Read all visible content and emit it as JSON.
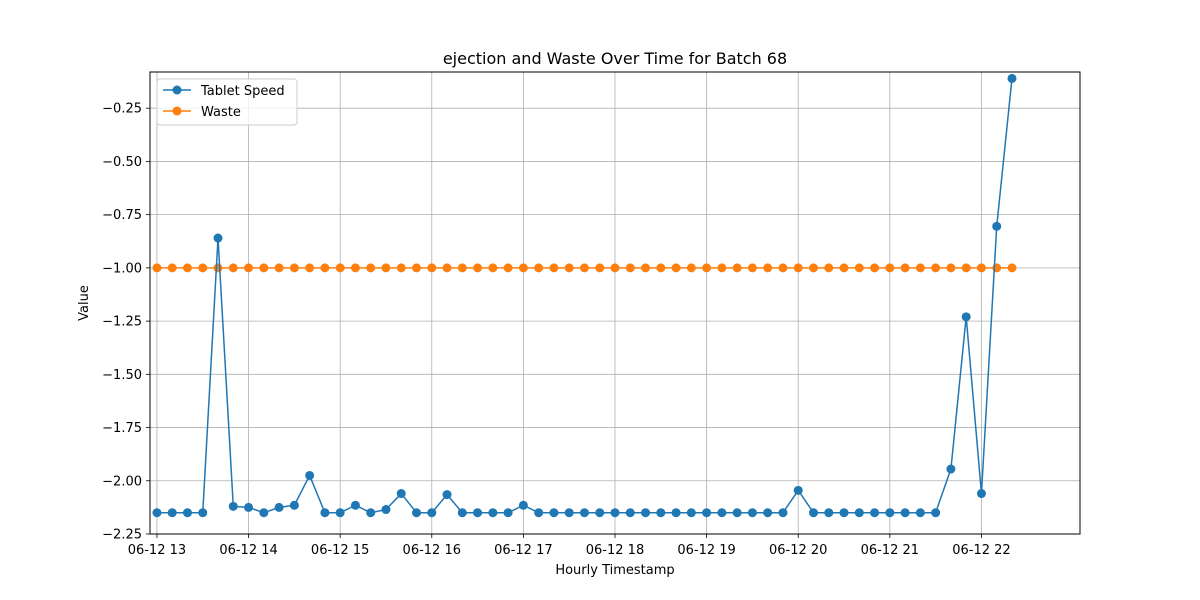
{
  "chart_data": {
    "type": "line",
    "title": "ejection and Waste Over Time for Batch 68",
    "xlabel": "Hourly Timestamp",
    "ylabel": "Value",
    "x_start": "2024-06-12 13:00",
    "x_step_minutes": 10,
    "x_tick_labels": [
      "06-12 13",
      "06-12 14",
      "06-12 15",
      "06-12 16",
      "06-12 17",
      "06-12 18",
      "06-12 19",
      "06-12 20",
      "06-12 21",
      "06-12 22"
    ],
    "ylim": [
      -2.25,
      -0.08
    ],
    "y_ticks": [
      -2.25,
      -2.0,
      -1.75,
      -1.5,
      -1.25,
      -1.0,
      -0.75,
      -0.5,
      -0.25
    ],
    "y_tick_labels": [
      "−2.25",
      "−2.00",
      "−1.75",
      "−1.50",
      "−1.25",
      "−1.00",
      "−0.75",
      "−0.50",
      "−0.25"
    ],
    "grid": true,
    "legend_position": "top-left",
    "series": [
      {
        "name": "Tablet Speed",
        "color": "#1f77b4",
        "values": [
          -2.15,
          -2.15,
          -2.15,
          -2.15,
          -0.86,
          -2.12,
          -2.125,
          -2.15,
          -2.125,
          -2.115,
          -1.975,
          -2.15,
          -2.15,
          -2.115,
          -2.15,
          -2.135,
          -2.06,
          -2.15,
          -2.15,
          -2.065,
          -2.15,
          -2.15,
          -2.15,
          -2.15,
          -2.115,
          -2.15,
          -2.15,
          -2.15,
          -2.15,
          -2.15,
          -2.15,
          -2.15,
          -2.15,
          -2.15,
          -2.15,
          -2.15,
          -2.15,
          -2.15,
          -2.15,
          -2.15,
          -2.15,
          -2.15,
          -2.045,
          -2.15,
          -2.15,
          -2.15,
          -2.15,
          -2.15,
          -2.15,
          -2.15,
          -2.15,
          -2.15,
          -1.945,
          -1.23,
          -2.06,
          -0.805,
          -0.11
        ]
      },
      {
        "name": "Waste",
        "color": "#ff7f0e",
        "values": [
          -1,
          -1,
          -1,
          -1,
          -1,
          -1,
          -1,
          -1,
          -1,
          -1,
          -1,
          -1,
          -1,
          -1,
          -1,
          -1,
          -1,
          -1,
          -1,
          -1,
          -1,
          -1,
          -1,
          -1,
          -1,
          -1,
          -1,
          -1,
          -1,
          -1,
          -1,
          -1,
          -1,
          -1,
          -1,
          -1,
          -1,
          -1,
          -1,
          -1,
          -1,
          -1,
          -1,
          -1,
          -1,
          -1,
          -1,
          -1,
          -1,
          -1,
          -1,
          -1,
          -1,
          -1,
          -1,
          -1,
          -1
        ]
      }
    ]
  }
}
